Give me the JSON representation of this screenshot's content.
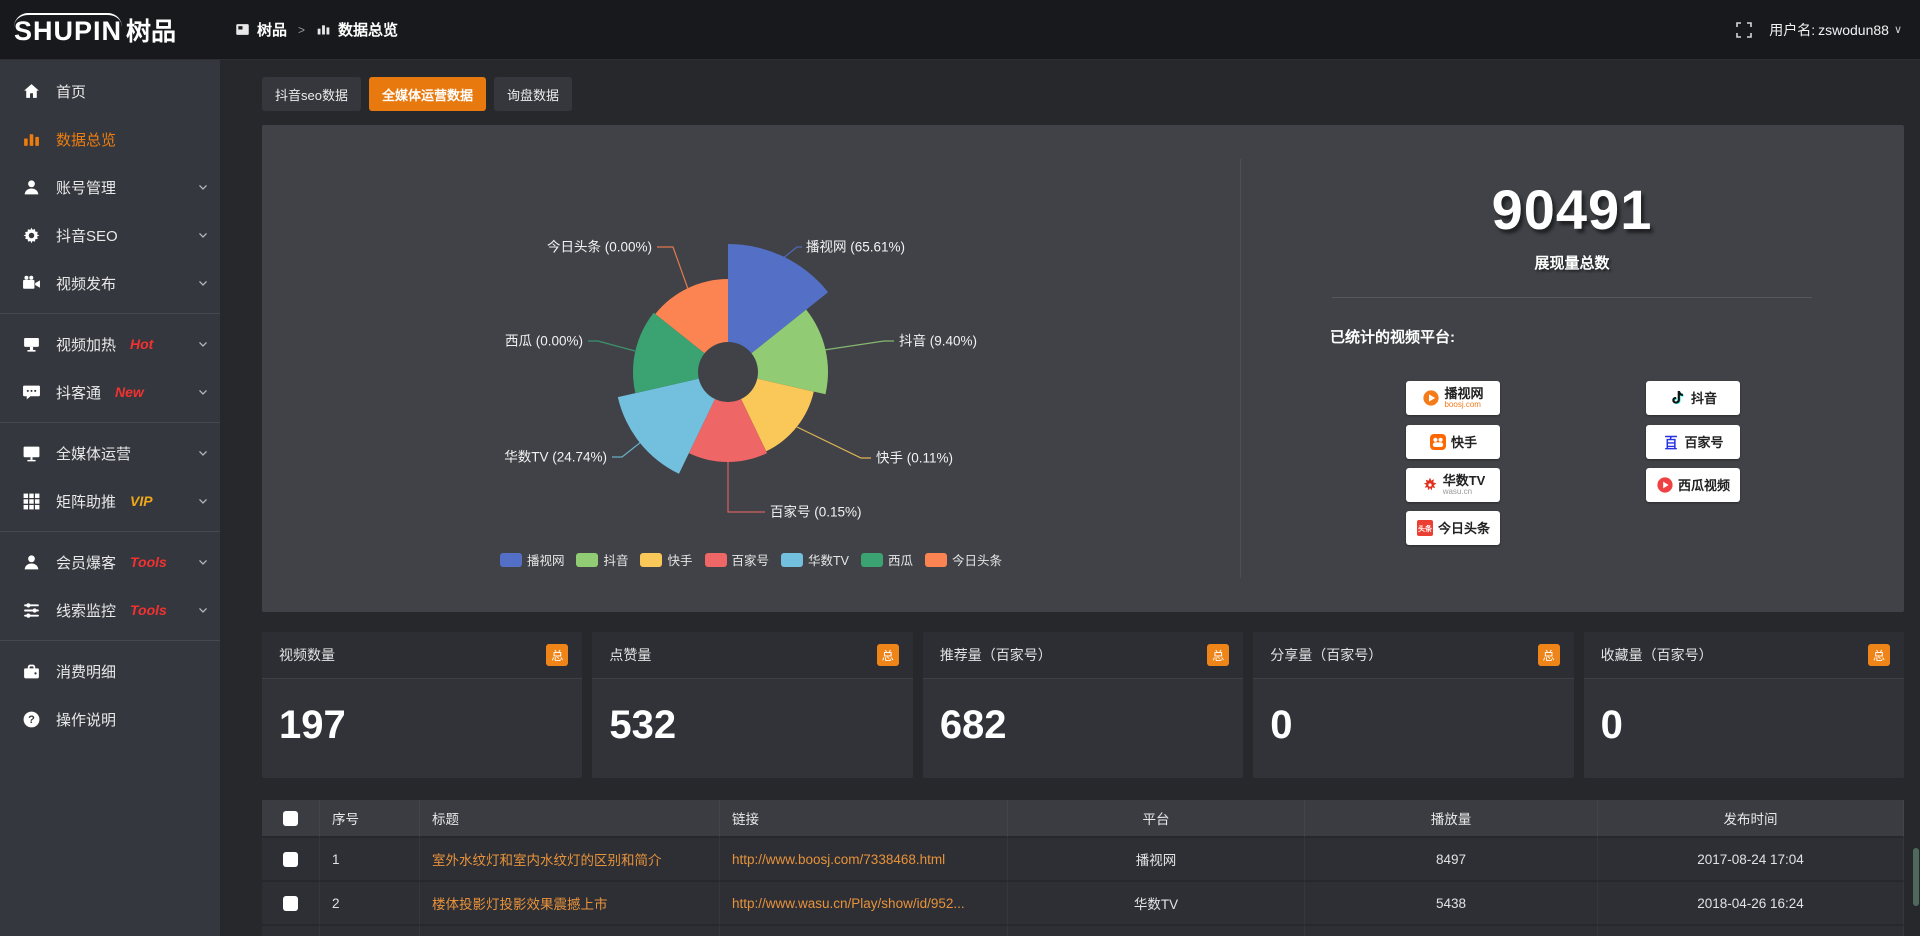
{
  "header": {
    "logo_text": "SHUPIN",
    "logo_suffix": "树品",
    "breadcrumb_app": "树品",
    "breadcrumb_sep": ">",
    "breadcrumb_page": "数据总览",
    "user_label": "用户名:",
    "username": "zswodun88"
  },
  "sidebar": {
    "items": [
      {
        "id": "home",
        "icon": "home",
        "label": "首页"
      },
      {
        "id": "data-overview",
        "icon": "bar",
        "label": "数据总览",
        "active": true
      },
      {
        "id": "account-manage",
        "icon": "user",
        "label": "账号管理",
        "chevron": true
      },
      {
        "id": "douyin-seo",
        "icon": "gear",
        "label": "抖音SEO",
        "chevron": true
      },
      {
        "id": "video-publish",
        "icon": "video",
        "label": "视频发布",
        "chevron": true,
        "divider_after": true
      },
      {
        "id": "video-heat",
        "icon": "heat",
        "label": "视频加热",
        "badge": "Hot",
        "badge_style": "red",
        "chevron": true
      },
      {
        "id": "douketong",
        "icon": "chat",
        "label": "抖客通",
        "badge": "New",
        "badge_style": "red",
        "chevron": true,
        "divider_after": true
      },
      {
        "id": "omni-media",
        "icon": "monitor",
        "label": "全媒体运营",
        "chevron": true
      },
      {
        "id": "matrix-boost",
        "icon": "grid",
        "label": "矩阵助推",
        "badge": "VIP",
        "badge_style": "vip",
        "chevron": true,
        "divider_after": true
      },
      {
        "id": "member-baoke",
        "icon": "user",
        "label": "会员爆客",
        "badge": "Tools",
        "badge_style": "red",
        "chevron": true
      },
      {
        "id": "clue-monitor",
        "icon": "sliders",
        "label": "线索监控",
        "badge": "Tools",
        "badge_style": "red",
        "chevron": true,
        "divider_after": true
      },
      {
        "id": "consume-detail",
        "icon": "wallet",
        "label": "消费明细"
      },
      {
        "id": "op-guide",
        "icon": "question",
        "label": "操作说明"
      }
    ]
  },
  "tabs": [
    {
      "label": "抖音seo数据",
      "active": false
    },
    {
      "label": "全媒体运营数据",
      "active": true
    },
    {
      "label": "询盘数据",
      "active": false
    }
  ],
  "chart_data": {
    "type": "pie",
    "variant": "nightingale-rose",
    "label_format": "{name} ({value}%)",
    "legend_position": "bottom",
    "series": [
      {
        "name": "播视网",
        "value": 65.61,
        "color": "#5470c6"
      },
      {
        "name": "抖音",
        "value": 9.4,
        "color": "#91cc75"
      },
      {
        "name": "快手",
        "value": 0.11,
        "color": "#fac858"
      },
      {
        "name": "百家号",
        "value": 0.15,
        "color": "#ee6666"
      },
      {
        "name": "华数TV",
        "value": 24.74,
        "color": "#73c0de"
      },
      {
        "name": "西瓜",
        "value": 0.0,
        "color": "#3ba272"
      },
      {
        "name": "今日头条",
        "value": 0.0,
        "color": "#fc8452"
      }
    ]
  },
  "summary": {
    "total_value": "90491",
    "total_label": "展现量总数",
    "platforms_title": "已统计的视频平台:",
    "platform_badges": [
      {
        "name": "播视网",
        "sub": "boosj.com",
        "icon": "boosj"
      },
      {
        "name": "快手",
        "sub": "",
        "icon": "kuaishou"
      },
      {
        "name": "华数TV",
        "sub": "wasu.cn",
        "icon": "wasu"
      },
      {
        "name": "今日头条",
        "sub": "",
        "icon": "toutiao"
      },
      {
        "name": "抖音",
        "sub": "",
        "icon": "douyin"
      },
      {
        "name": "百家号",
        "sub": "",
        "icon": "baijiahao"
      },
      {
        "name": "西瓜视频",
        "sub": "",
        "icon": "xigua"
      }
    ]
  },
  "stat_cards": [
    {
      "title": "视频数量",
      "badge": "总",
      "value": "197"
    },
    {
      "title": "点赞量",
      "badge": "总",
      "value": "532"
    },
    {
      "title": "推荐量（百家号）",
      "badge": "总",
      "value": "682"
    },
    {
      "title": "分享量（百家号）",
      "badge": "总",
      "value": "0"
    },
    {
      "title": "收藏量（百家号）",
      "badge": "总",
      "value": "0"
    }
  ],
  "table": {
    "columns": [
      "序号",
      "标题",
      "链接",
      "平台",
      "播放量",
      "发布时间"
    ],
    "rows": [
      {
        "index": "1",
        "title": "室外水纹灯和室内水纹灯的区别和简介",
        "link": "http://www.boosj.com/7338468.html",
        "platform": "播视网",
        "plays": "8497",
        "time": "2017-08-24 17:04"
      },
      {
        "index": "2",
        "title": "楼体投影灯投影效果震撼上市",
        "link": "http://www.wasu.cn/Play/show/id/952...",
        "platform": "华数TV",
        "plays": "5438",
        "time": "2018-04-26 16:24"
      }
    ]
  },
  "colors": {
    "accent": "#e8790f",
    "link": "#e8923a",
    "badge_orange": "#ef8518",
    "hot_red": "#f43131",
    "vip_yellow": "#f0a818"
  }
}
